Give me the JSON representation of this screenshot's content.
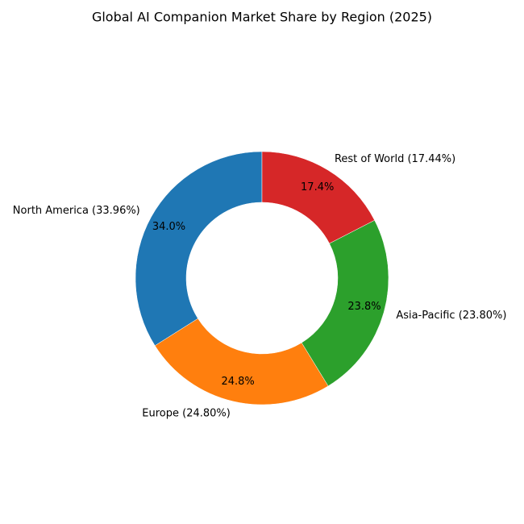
{
  "chart_data": {
    "type": "donut",
    "title": "Global AI Companion Market Share by Region (2025)",
    "categories": [
      "North America (33.96%)",
      "Europe (24.80%)",
      "Asia-Pacific (23.80%)",
      "Rest of World (17.44%)"
    ],
    "values": [
      33.96,
      24.8,
      23.8,
      17.44
    ],
    "value_labels": [
      "34.0%",
      "24.8%",
      "23.8%",
      "17.4%"
    ],
    "colors": [
      "#1f77b4",
      "#ff7f0e",
      "#2ca02c",
      "#d62728"
    ]
  }
}
